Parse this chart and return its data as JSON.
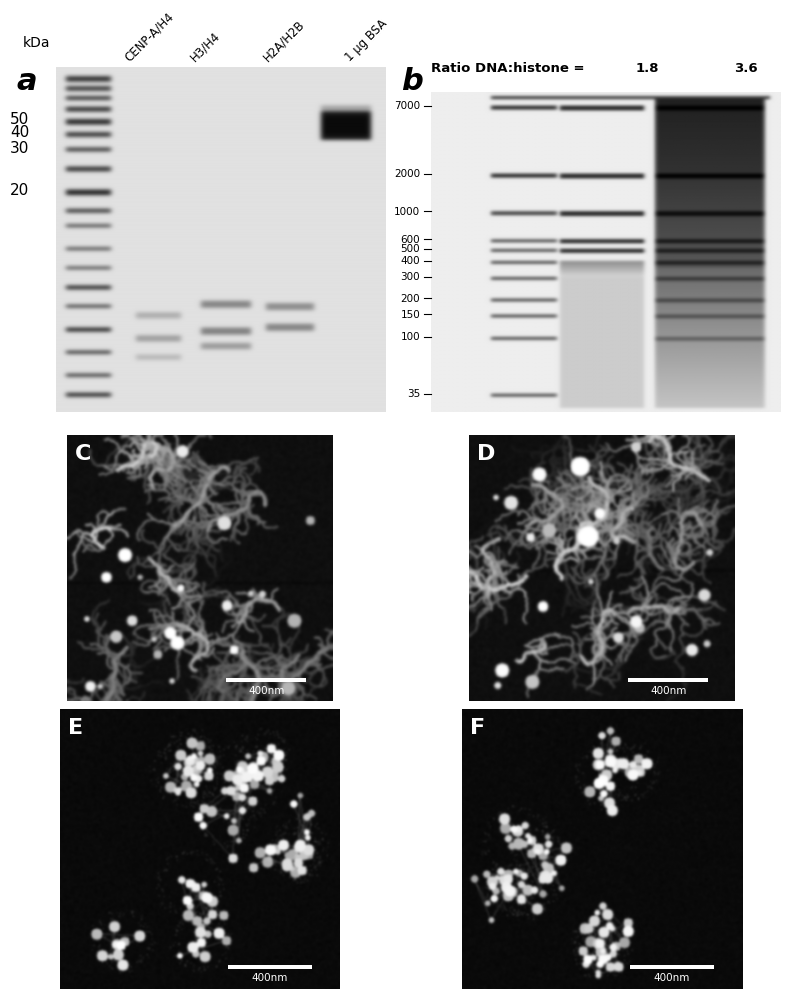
{
  "fig_width": 8.0,
  "fig_height": 11.9,
  "panel_a_label": "a",
  "panel_b_label": "b",
  "panel_c_label": "C",
  "panel_d_label": "D",
  "panel_e_label": "E",
  "panel_f_label": "F",
  "gel_a_kda_labels": [
    "50",
    "40",
    "30",
    "20"
  ],
  "gel_a_col_labels": [
    "CENP-A/H4",
    "H3/H4",
    "H2A/H2B",
    "1 μg BSA"
  ],
  "gel_b_bp_labels": [
    "7000",
    "2000",
    "1000",
    "600",
    "500",
    "400",
    "300",
    "200",
    "150",
    "100",
    "35"
  ],
  "gel_b_ratio_label": "Ratio DNA:histone =",
  "gel_b_ratio_1": "1.8",
  "gel_b_ratio_2": "3.6",
  "scale_bar_label": "400nm",
  "kda_label": "kDa"
}
